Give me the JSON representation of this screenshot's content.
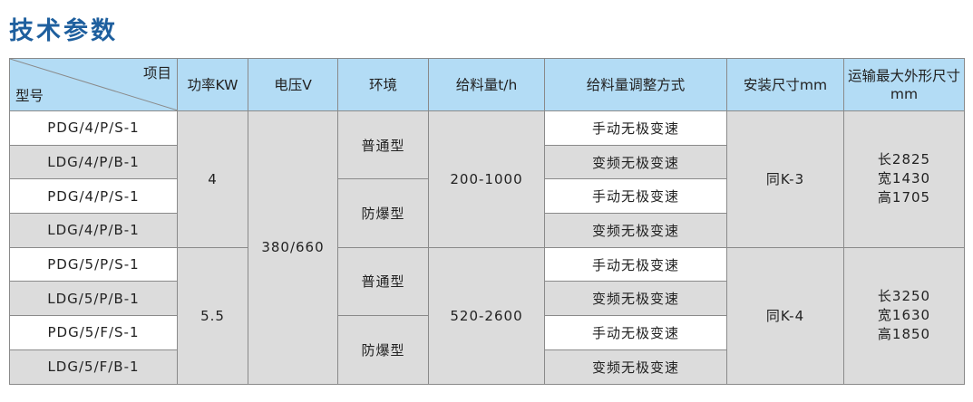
{
  "title": "技术参数",
  "header": {
    "item": "项目",
    "model": "型号",
    "power": "功率KW",
    "voltage": "电压V",
    "environment": "环境",
    "feed": "给料量t/h",
    "adjust": "给料量调整方式",
    "install": "安装尺寸mm",
    "transport": "运输最大外形尺寸mm"
  },
  "rows": [
    {
      "model": "PDG/4/P/S-1",
      "adjust": "手动无极变速"
    },
    {
      "model": "LDG/4/P/B-1",
      "adjust": "变频无极变速"
    },
    {
      "model": "PDG/4/P/S-1",
      "adjust": "手动无极变速"
    },
    {
      "model": "LDG/4/P/B-1",
      "adjust": "变频无极变速"
    },
    {
      "model": "PDG/5/P/S-1",
      "adjust": "手动无极变速"
    },
    {
      "model": "LDG/5/P/B-1",
      "adjust": "变频无极变速"
    },
    {
      "model": "PDG/5/F/S-1",
      "adjust": "手动无极变速"
    },
    {
      "model": "LDG/5/F/B-1",
      "adjust": "变频无极变速"
    }
  ],
  "groups": [
    {
      "power": "4",
      "env1": "普通型",
      "env2": "防爆型",
      "feed": "200-1000",
      "install": "同K-3",
      "dims": [
        "长2825",
        "宽1430",
        "高1705"
      ]
    },
    {
      "power": "5.5",
      "env1": "普通型",
      "env2": "防爆型",
      "feed": "520-2600",
      "install": "同K-4",
      "dims": [
        "长3250",
        "宽1630",
        "高1850"
      ]
    }
  ],
  "voltage": "380/660"
}
